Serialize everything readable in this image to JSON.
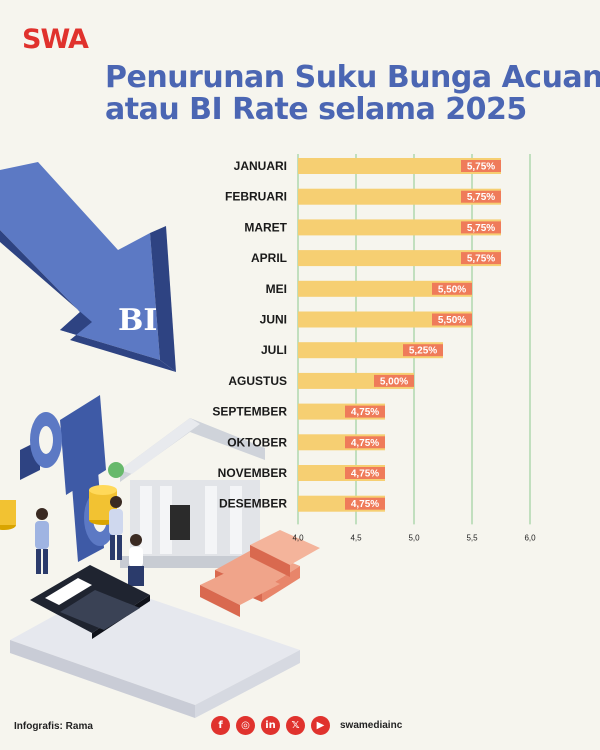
{
  "brand": {
    "logo_text": "SWA",
    "accent": "#e0322d"
  },
  "title": {
    "line1": "Penurunan Suku Bunga Acuan",
    "line2": "atau BI Rate selama 2025"
  },
  "chart_data": {
    "type": "bar",
    "orientation": "horizontal",
    "categories": [
      "JANUARI",
      "FEBRUARI",
      "MARET",
      "APRIL",
      "MEI",
      "JUNI",
      "JULI",
      "AGUSTUS",
      "SEPTEMBER",
      "OKTOBER",
      "NOVEMBER",
      "DESEMBER"
    ],
    "values": [
      5.75,
      5.75,
      5.75,
      5.75,
      5.5,
      5.5,
      5.25,
      5.0,
      4.75,
      4.75,
      4.75,
      4.75
    ],
    "data_labels": [
      "5,75%",
      "5,75%",
      "5,75%",
      "5,75%",
      "5,50%",
      "5,50%",
      "5,25%",
      "5,00%",
      "4,75%",
      "4,75%",
      "4,75%",
      "4,75%"
    ],
    "xlim": [
      4.0,
      6.0
    ],
    "xticks": [
      4.0,
      4.5,
      5.0,
      5.5,
      6.0
    ],
    "xtick_labels": [
      "4,0",
      "4,5",
      "5,0",
      "5,5",
      "6,0"
    ],
    "grid": true,
    "bar_color": "#f6cf72",
    "label_color": "#ef7b5a",
    "grid_color": "#8cc98f"
  },
  "illustration": {
    "emblem_text": "BI",
    "symbol": "%"
  },
  "footer": {
    "credit": "Infografis: Rama",
    "social_icons": [
      {
        "name": "facebook-icon",
        "glyph": "f"
      },
      {
        "name": "instagram-icon",
        "glyph": "◎"
      },
      {
        "name": "linkedin-icon",
        "glyph": "in"
      },
      {
        "name": "x-icon",
        "glyph": "𝕏"
      },
      {
        "name": "youtube-icon",
        "glyph": "▶"
      }
    ],
    "handle": "swamediainc"
  }
}
